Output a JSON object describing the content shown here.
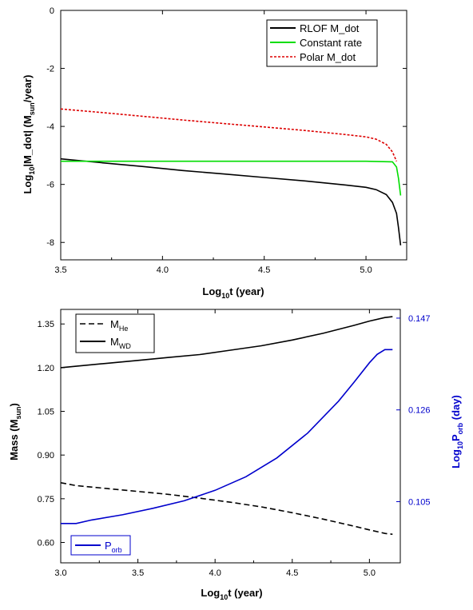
{
  "chart_data": [
    {
      "type": "line",
      "xlim": [
        3.5,
        5.2
      ],
      "ylim": [
        -8.6,
        0
      ],
      "x_ticks": [
        "3.5",
        "4.0",
        "4.5",
        "5.0"
      ],
      "x_tick_values": [
        3.5,
        4.0,
        4.5,
        5.0
      ],
      "y_ticks": [
        "0",
        "-2",
        "-4",
        "-6",
        "-8"
      ],
      "y_tick_values": [
        0,
        -2,
        -4,
        -6,
        -8
      ],
      "xlabel": {
        "main": "Log",
        "sub": "10",
        "rest": "t (year)"
      },
      "ylabel": {
        "a": "Log",
        "a_sub": "10",
        "b": "|M_dot| (M",
        "b_sub": "sun",
        "c": "/year)"
      },
      "legend_position": "top-right",
      "series": [
        {
          "name": "RLOF M_dot",
          "color": "#000000",
          "style": "solid",
          "x": [
            3.5,
            3.7,
            3.9,
            4.1,
            4.3,
            4.5,
            4.7,
            4.9,
            5.0,
            5.05,
            5.1,
            5.13,
            5.15,
            5.16,
            5.17
          ],
          "y": [
            -5.12,
            -5.25,
            -5.38,
            -5.52,
            -5.64,
            -5.76,
            -5.88,
            -6.02,
            -6.1,
            -6.18,
            -6.35,
            -6.62,
            -7.0,
            -7.5,
            -8.1
          ]
        },
        {
          "name": "Constant rate",
          "color": "#00dd00",
          "style": "solid",
          "x": [
            3.5,
            3.8,
            4.2,
            4.6,
            5.0,
            5.13,
            5.15,
            5.16,
            5.17
          ],
          "y": [
            -5.2,
            -5.2,
            -5.2,
            -5.2,
            -5.2,
            -5.22,
            -5.4,
            -5.8,
            -6.38
          ]
        },
        {
          "name": "Polar M_dot",
          "color": "#dd0000",
          "style": "dashed",
          "x": [
            3.5,
            3.7,
            3.9,
            4.1,
            4.3,
            4.5,
            4.7,
            4.9,
            5.0,
            5.05,
            5.1,
            5.13,
            5.15
          ],
          "y": [
            -3.4,
            -3.52,
            -3.65,
            -3.78,
            -3.9,
            -4.02,
            -4.14,
            -4.28,
            -4.36,
            -4.44,
            -4.62,
            -4.88,
            -5.2
          ]
        }
      ]
    },
    {
      "type": "line",
      "xlim": [
        3.0,
        5.2
      ],
      "ylim": [
        0.53,
        1.4
      ],
      "y2lim": [
        0.091,
        0.149
      ],
      "x_ticks": [
        "3.0",
        "3.5",
        "4.0",
        "4.5",
        "5.0"
      ],
      "x_tick_values": [
        3.0,
        3.5,
        4.0,
        4.5,
        5.0
      ],
      "y_ticks": [
        "0.60",
        "0.75",
        "0.90",
        "1.05",
        "1.20",
        "1.35"
      ],
      "y_tick_values": [
        0.6,
        0.75,
        0.9,
        1.05,
        1.2,
        1.35
      ],
      "y2_ticks": [
        "0.105",
        "0.126",
        "0.147"
      ],
      "y2_tick_values": [
        0.105,
        0.126,
        0.147
      ],
      "xlabel": {
        "main": "Log",
        "sub": "10",
        "rest": "t (year)"
      },
      "ylabel": {
        "main": "Mass (M",
        "sub": "sun",
        "rest": ")"
      },
      "y2label": {
        "main": "Log",
        "sub": "10",
        "mid": "P",
        "sub2": "orb",
        "rest": " (day)"
      },
      "legend_position": "top-left",
      "series": [
        {
          "name": "M",
          "name_sub": "He",
          "color": "#000000",
          "style": "dashed",
          "axis": "left",
          "x": [
            3.0,
            3.1,
            3.3,
            3.5,
            3.7,
            3.9,
            4.1,
            4.3,
            4.5,
            4.7,
            4.9,
            5.0,
            5.1,
            5.15
          ],
          "y": [
            0.805,
            0.795,
            0.785,
            0.775,
            0.765,
            0.752,
            0.738,
            0.722,
            0.702,
            0.68,
            0.656,
            0.643,
            0.631,
            0.628
          ]
        },
        {
          "name": "M",
          "name_sub": "WD",
          "color": "#000000",
          "style": "solid",
          "axis": "left",
          "x": [
            3.0,
            3.1,
            3.3,
            3.5,
            3.7,
            3.9,
            4.1,
            4.3,
            4.5,
            4.7,
            4.9,
            5.0,
            5.1,
            5.15
          ],
          "y": [
            1.2,
            1.205,
            1.215,
            1.225,
            1.235,
            1.245,
            1.26,
            1.275,
            1.295,
            1.318,
            1.345,
            1.36,
            1.372,
            1.375
          ]
        },
        {
          "name": "P",
          "name_sub": "orb",
          "color": "#0000cc",
          "style": "solid",
          "axis": "right",
          "x": [
            3.0,
            3.1,
            3.2,
            3.4,
            3.6,
            3.8,
            4.0,
            4.2,
            4.4,
            4.6,
            4.8,
            4.9,
            5.0,
            5.05,
            5.1,
            5.15
          ],
          "y": [
            0.1,
            0.1,
            0.1008,
            0.102,
            0.1035,
            0.1052,
            0.1076,
            0.1107,
            0.115,
            0.1207,
            0.128,
            0.1323,
            0.1368,
            0.1387,
            0.1398,
            0.1398
          ]
        }
      ]
    }
  ]
}
